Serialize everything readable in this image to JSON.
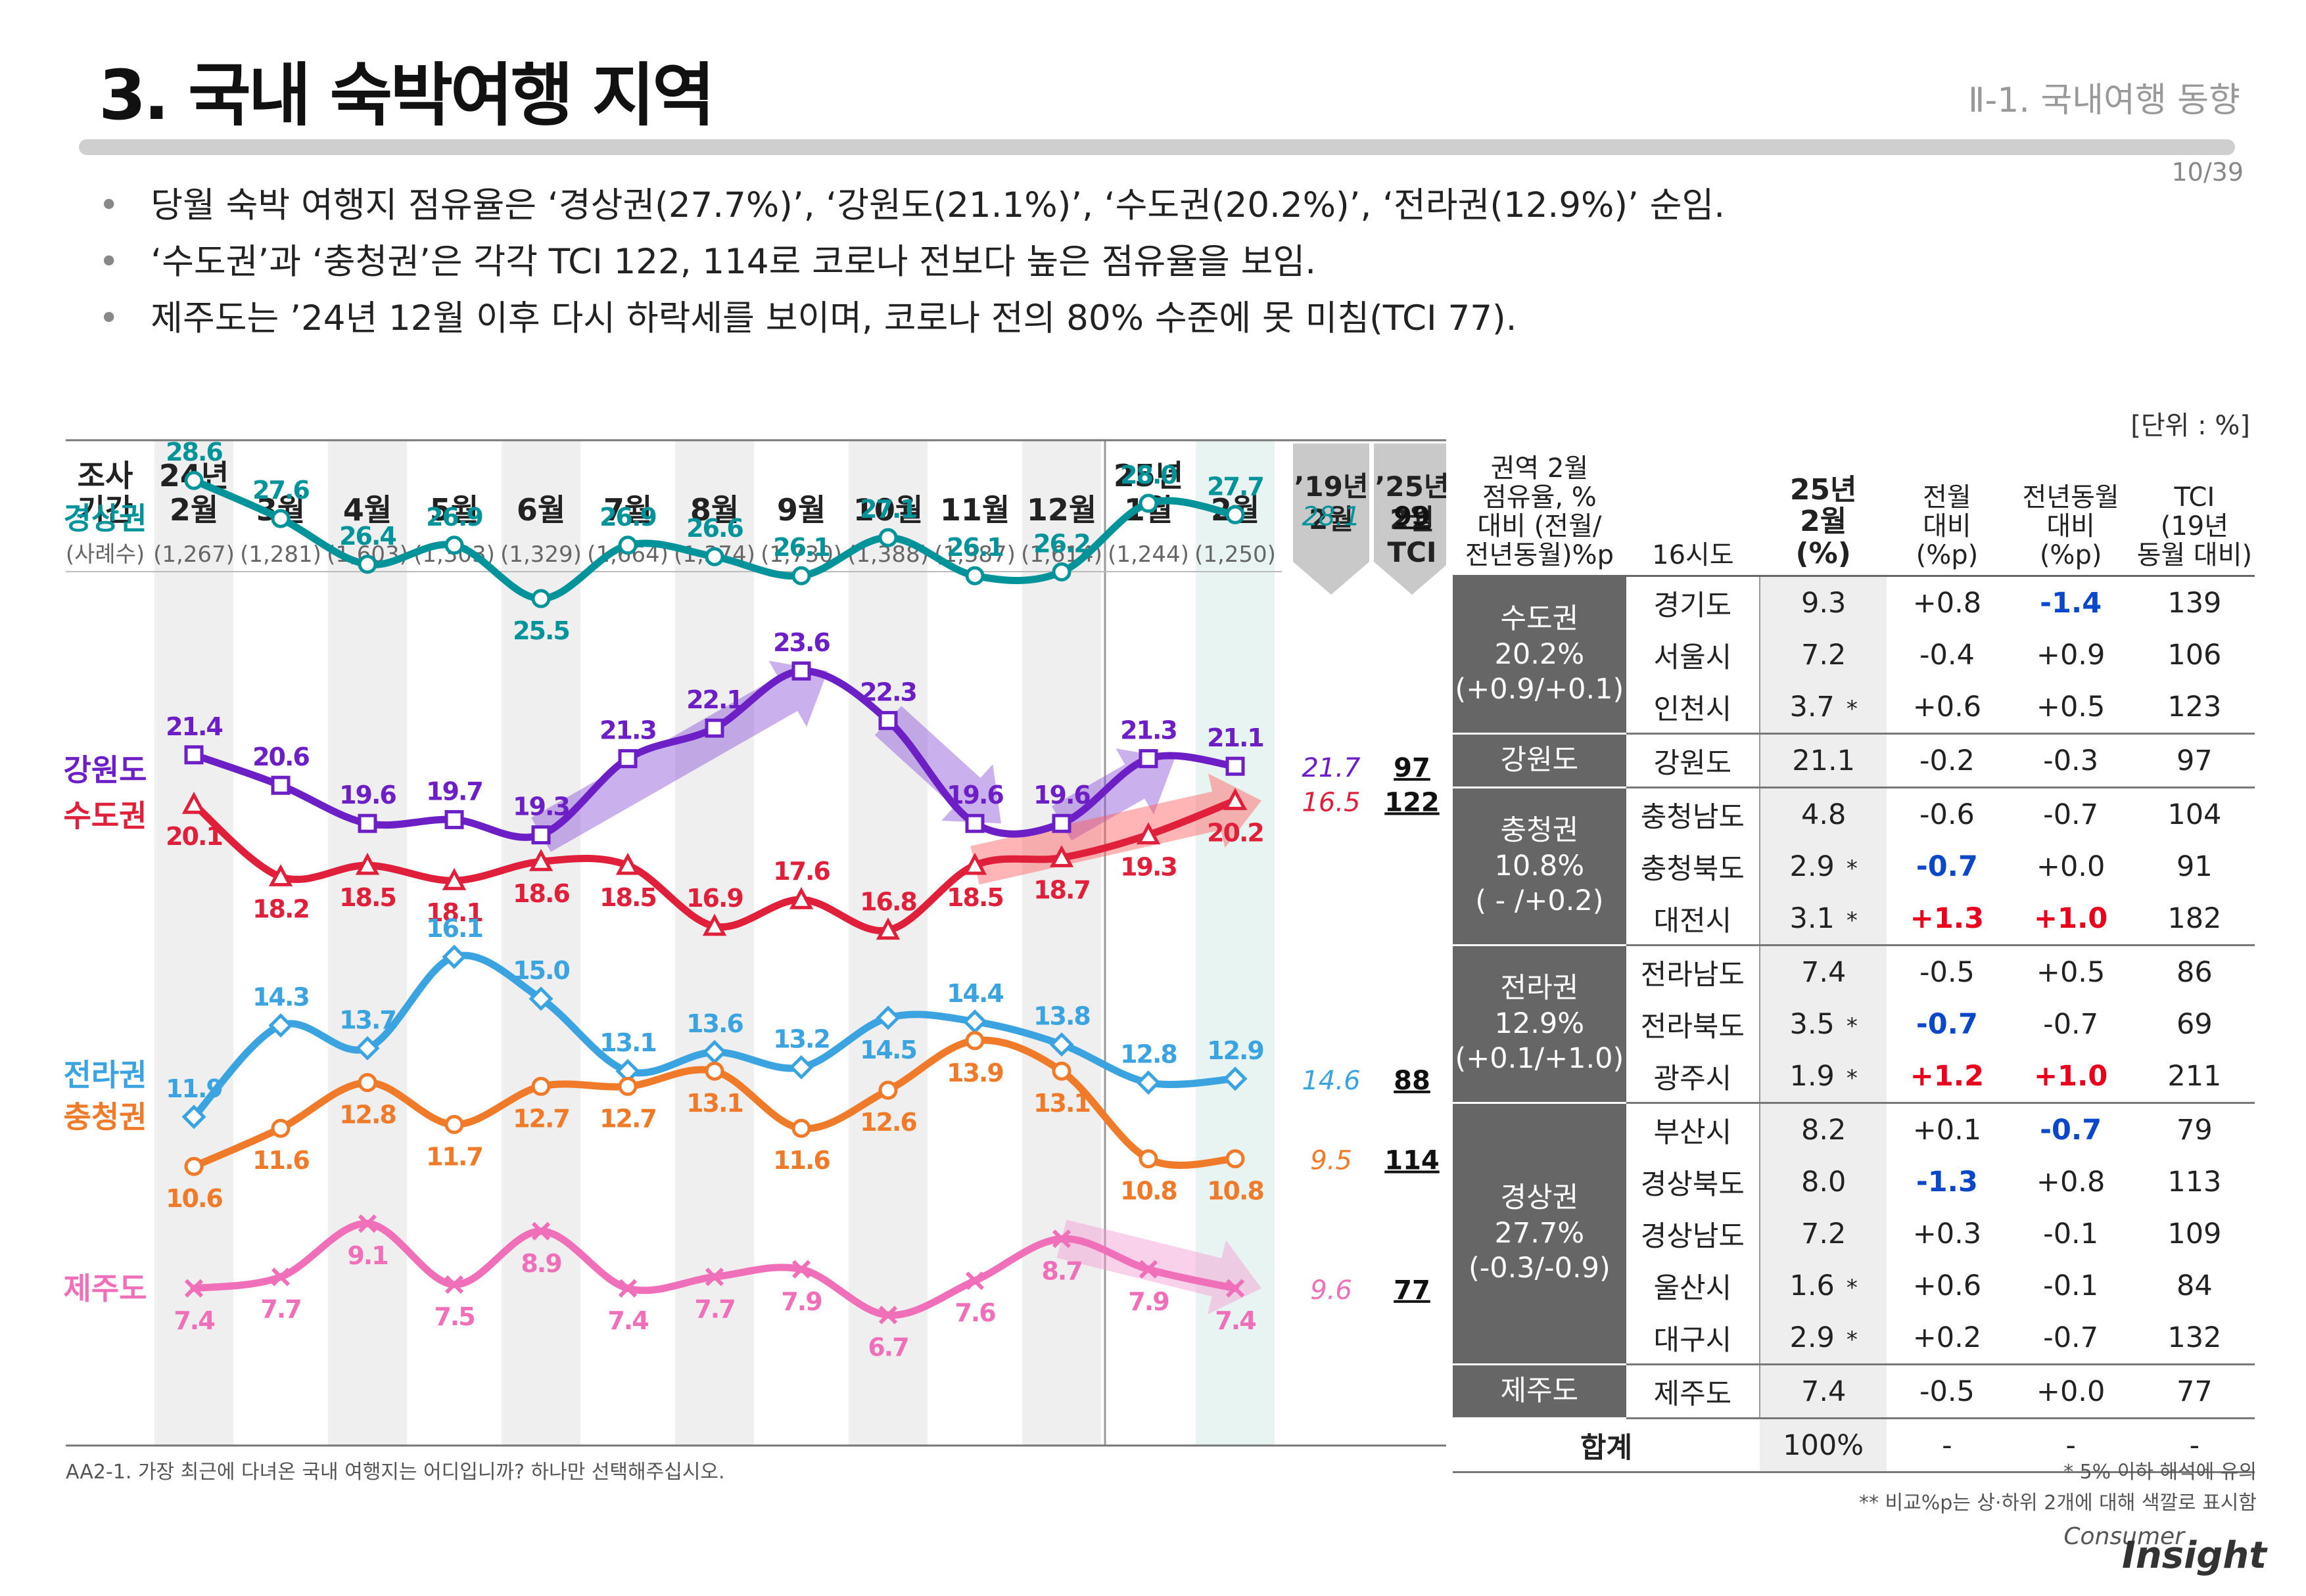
{
  "header": {
    "title": "3. 국내 숙박여행 지역",
    "section": "Ⅱ-1. 국내여행 동향",
    "page_number": "10/39"
  },
  "bullets": [
    "당월 숙박 여행지 점유율은 ‘경상권(27.7%)’, ‘강원도(21.1%)’, ‘수도권(20.2%)’, ‘전라권(12.9%)’ 순임.",
    "‘수도권’과 ‘충청권’은 각각 TCI 122, 114로 코로나 전보다 높은 점유율을 보임.",
    "제주도는 ’24년 12월 이후 다시 하락세를 보이며, 코로나 전의 80% 수준에 못 미침(TCI 77)."
  ],
  "unit_label": "[단위 : %]",
  "chart_data": {
    "type": "line",
    "period_label": [
      "조사",
      "기간"
    ],
    "sample_label": "(사례수)",
    "categories": [
      [
        "24년",
        "2월"
      ],
      [
        "",
        "3월"
      ],
      [
        "",
        "4월"
      ],
      [
        "",
        "5월"
      ],
      [
        "",
        "6월"
      ],
      [
        "",
        "7월"
      ],
      [
        "",
        "8월"
      ],
      [
        "",
        "9월"
      ],
      [
        "",
        "10월"
      ],
      [
        "",
        "11월"
      ],
      [
        "",
        "12월"
      ],
      [
        "25년",
        "1월"
      ],
      [
        "",
        "2월"
      ]
    ],
    "sample_sizes": [
      "(1,267)",
      "(1,281)",
      "(1,603)",
      "(1,303)",
      "(1,329)",
      "(1,664)",
      "(1,374)",
      "(1,730)",
      "(1,388)",
      "(1,387)",
      "(1,614)",
      "(1,244)",
      "(1,250)"
    ],
    "ref_headers": [
      [
        "’19년",
        "2월"
      ],
      [
        "’25년",
        "2월",
        "TCI"
      ]
    ],
    "ylim": [
      5,
      30
    ],
    "series": [
      {
        "name": "경상권",
        "color": "#00939a",
        "marker": "circle",
        "values": [
          28.6,
          27.6,
          26.4,
          26.9,
          25.5,
          26.9,
          26.6,
          26.1,
          27.1,
          26.1,
          26.2,
          28.0,
          27.7
        ],
        "ref_2019": "28.1",
        "tci": "99",
        "label_below": [
          false,
          false,
          false,
          false,
          true,
          false,
          false,
          false,
          false,
          false,
          false,
          false,
          false
        ]
      },
      {
        "name": "강원도",
        "color": "#6d1fc6",
        "marker": "square",
        "values": [
          21.4,
          20.6,
          19.6,
          19.7,
          19.3,
          21.3,
          22.1,
          23.6,
          22.3,
          19.6,
          19.6,
          21.3,
          21.1
        ],
        "ref_2019": "21.7",
        "tci": "97",
        "label_below": [
          false,
          false,
          false,
          false,
          false,
          false,
          false,
          false,
          false,
          false,
          false,
          false,
          false
        ]
      },
      {
        "name": "수도권",
        "color": "#e0203a",
        "marker": "triangle",
        "values": [
          20.1,
          18.2,
          18.5,
          18.1,
          18.6,
          18.5,
          16.9,
          17.6,
          16.8,
          18.5,
          18.7,
          19.3,
          20.2
        ],
        "ref_2019": "16.5",
        "tci": "122",
        "label_below": [
          true,
          true,
          true,
          true,
          true,
          true,
          false,
          false,
          false,
          true,
          true,
          true,
          true
        ]
      },
      {
        "name": "전라권",
        "color": "#3ba4e0",
        "marker": "diamond",
        "values": [
          11.9,
          14.3,
          13.7,
          16.1,
          15.0,
          13.1,
          13.6,
          13.2,
          14.5,
          14.4,
          13.8,
          12.8,
          12.9
        ],
        "ref_2019": "14.6",
        "tci": "88",
        "label_below": [
          false,
          false,
          false,
          false,
          false,
          false,
          false,
          false,
          true,
          false,
          false,
          false,
          false
        ]
      },
      {
        "name": "충청권",
        "color": "#ef7b2a",
        "marker": "circle",
        "values": [
          10.6,
          11.6,
          12.8,
          11.7,
          12.7,
          12.7,
          13.1,
          11.6,
          12.6,
          13.9,
          13.1,
          10.8,
          10.8
        ],
        "ref_2019": "9.5",
        "tci": "114",
        "label_below": [
          true,
          true,
          true,
          true,
          true,
          true,
          true,
          true,
          true,
          true,
          true,
          true,
          true
        ]
      },
      {
        "name": "제주도",
        "color": "#f06fb9",
        "marker": "x",
        "values": [
          7.4,
          7.7,
          9.1,
          7.5,
          8.9,
          7.4,
          7.7,
          7.9,
          6.7,
          7.6,
          8.7,
          7.9,
          7.4
        ],
        "ref_2019": "9.6",
        "tci": "77",
        "label_below": [
          true,
          true,
          true,
          true,
          true,
          true,
          true,
          true,
          true,
          true,
          true,
          true,
          true
        ]
      }
    ]
  },
  "table": {
    "headers": {
      "region": [
        "권역 2월",
        "점유율, %",
        "대비 (전월/",
        "전년동월)%p"
      ],
      "city": "16시도",
      "share": [
        "25년",
        "2월",
        "(%)"
      ],
      "mom": [
        "전월",
        "대비",
        "(%p)"
      ],
      "yoy": [
        "전년동월",
        "대비",
        "(%p)"
      ],
      "tci": [
        "TCI",
        "(19년",
        "동월 대비)"
      ]
    },
    "groups": [
      {
        "region": [
          "수도권",
          "20.2%",
          "(+0.9/+0.1)"
        ],
        "rows": [
          {
            "city": "경기도",
            "share": "9.3",
            "star": "",
            "mom": "+0.8",
            "mom_c": "",
            "yoy": "-1.4",
            "yoy_c": "neg",
            "tci": "139"
          },
          {
            "city": "서울시",
            "share": "7.2",
            "star": "",
            "mom": "-0.4",
            "mom_c": "",
            "yoy": "+0.9",
            "yoy_c": "",
            "tci": "106"
          },
          {
            "city": "인천시",
            "share": "3.7",
            "star": "*",
            "mom": "+0.6",
            "mom_c": "",
            "yoy": "+0.5",
            "yoy_c": "",
            "tci": "123"
          }
        ]
      },
      {
        "region": [
          "강원도"
        ],
        "rows": [
          {
            "city": "강원도",
            "share": "21.1",
            "star": "",
            "mom": "-0.2",
            "mom_c": "",
            "yoy": "-0.3",
            "yoy_c": "",
            "tci": "97"
          }
        ]
      },
      {
        "region": [
          "충청권",
          "10.8%",
          "( - /+0.2)"
        ],
        "rows": [
          {
            "city": "충청남도",
            "share": "4.8",
            "star": "",
            "mom": "-0.6",
            "mom_c": "",
            "yoy": "-0.7",
            "yoy_c": "",
            "tci": "104"
          },
          {
            "city": "충청북도",
            "share": "2.9",
            "star": "*",
            "mom": "-0.7",
            "mom_c": "neg",
            "yoy": "+0.0",
            "yoy_c": "",
            "tci": "91"
          },
          {
            "city": "대전시",
            "share": "3.1",
            "star": "*",
            "mom": "+1.3",
            "mom_c": "pos",
            "yoy": "+1.0",
            "yoy_c": "pos",
            "tci": "182"
          }
        ]
      },
      {
        "region": [
          "전라권",
          "12.9%",
          "(+0.1/+1.0)"
        ],
        "rows": [
          {
            "city": "전라남도",
            "share": "7.4",
            "star": "",
            "mom": "-0.5",
            "mom_c": "",
            "yoy": "+0.5",
            "yoy_c": "",
            "tci": "86"
          },
          {
            "city": "전라북도",
            "share": "3.5",
            "star": "*",
            "mom": "-0.7",
            "mom_c": "neg",
            "yoy": "-0.7",
            "yoy_c": "",
            "tci": "69"
          },
          {
            "city": "광주시",
            "share": "1.9",
            "star": "*",
            "mom": "+1.2",
            "mom_c": "pos",
            "yoy": "+1.0",
            "yoy_c": "pos",
            "tci": "211"
          }
        ]
      },
      {
        "region": [
          "경상권",
          "27.7%",
          "(-0.3/-0.9)"
        ],
        "rows": [
          {
            "city": "부산시",
            "share": "8.2",
            "star": "",
            "mom": "+0.1",
            "mom_c": "",
            "yoy": "-0.7",
            "yoy_c": "neg",
            "tci": "79"
          },
          {
            "city": "경상북도",
            "share": "8.0",
            "star": "",
            "mom": "-1.3",
            "mom_c": "neg",
            "yoy": "+0.8",
            "yoy_c": "",
            "tci": "113"
          },
          {
            "city": "경상남도",
            "share": "7.2",
            "star": "",
            "mom": "+0.3",
            "mom_c": "",
            "yoy": "-0.1",
            "yoy_c": "",
            "tci": "109"
          },
          {
            "city": "울산시",
            "share": "1.6",
            "star": "*",
            "mom": "+0.6",
            "mom_c": "",
            "yoy": "-0.1",
            "yoy_c": "",
            "tci": "84"
          },
          {
            "city": "대구시",
            "share": "2.9",
            "star": "*",
            "mom": "+0.2",
            "mom_c": "",
            "yoy": "-0.7",
            "yoy_c": "",
            "tci": "132"
          }
        ]
      },
      {
        "region": [
          "제주도"
        ],
        "rows": [
          {
            "city": "제주도",
            "share": "7.4",
            "star": "",
            "mom": "-0.5",
            "mom_c": "",
            "yoy": "+0.0",
            "yoy_c": "",
            "tci": "77"
          }
        ]
      }
    ],
    "total": {
      "label": "합계",
      "share": "100%",
      "mom": "-",
      "yoy": "-",
      "tci": "-"
    }
  },
  "footnotes": {
    "question": "AA2-1. 가장 최근에 다녀온 국내 여행지는 어디입니까? 하나만 선택해주십시오.",
    "note1": "* 5% 이하 해석에 유의",
    "note2": "** 비교%p는 상·하위 2개에 대해 색깔로 표시함"
  },
  "logo": {
    "top": "Consumer",
    "main": "Insight"
  }
}
